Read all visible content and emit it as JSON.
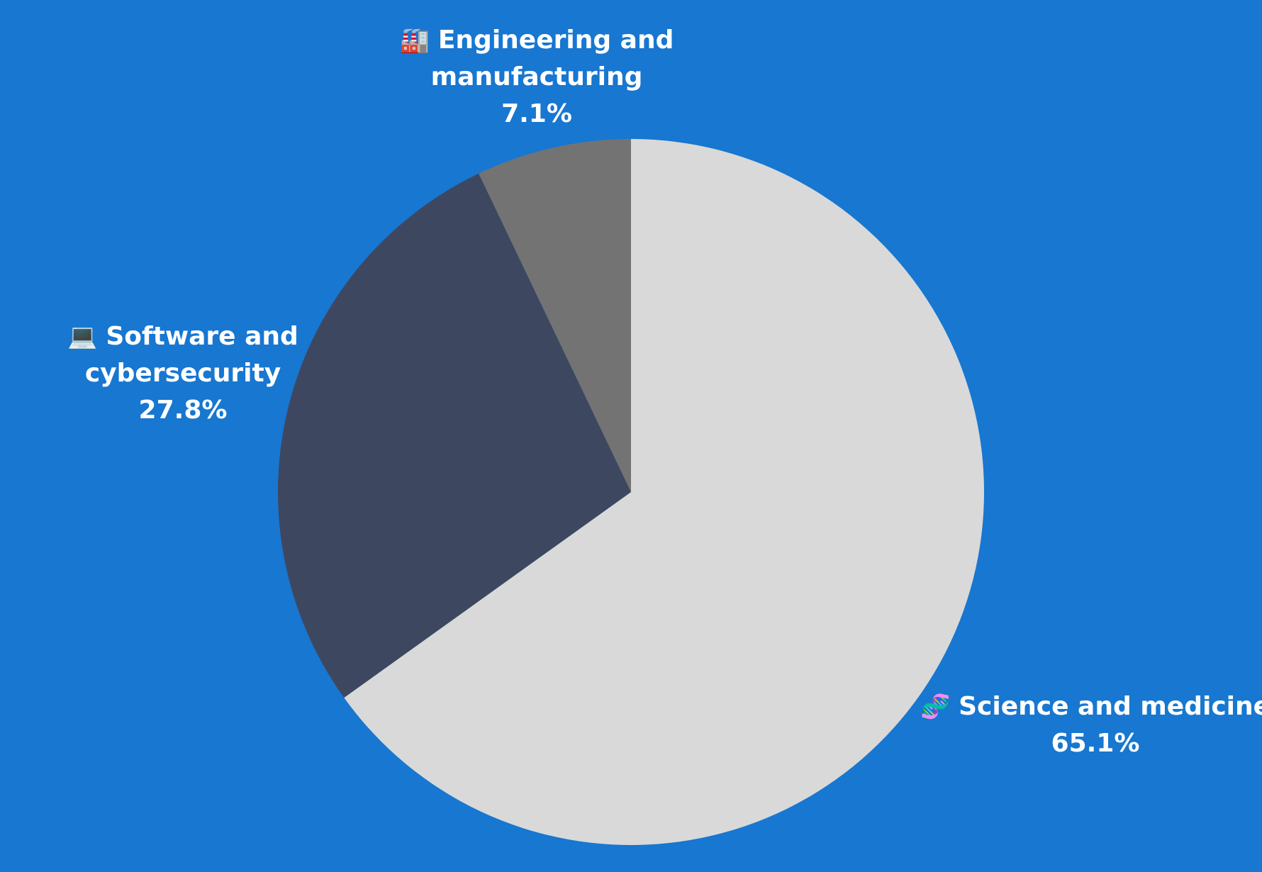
{
  "page": {
    "background": "#1777d1"
  },
  "chart_data": {
    "type": "pie",
    "start_angle_deg": 0,
    "direction": "clockwise",
    "legend": "none",
    "slices": [
      {
        "name": "Science and medicine",
        "value": 65.1,
        "label_lines": [
          "Science and medicine",
          "65.1%"
        ],
        "icon": "dna-icon",
        "color": "#d9d9d9"
      },
      {
        "name": "Software and cybersecurity",
        "value": 27.8,
        "label_lines": [
          "Software and",
          "cybersecurity",
          "27.8%"
        ],
        "icon": "laptop-icon",
        "color": "#3e4760"
      },
      {
        "name": "Engineering and manufacturing",
        "value": 7.1,
        "label_lines": [
          "Engineering and",
          "manufacturing",
          "7.1%"
        ],
        "icon": "factory-icon",
        "color": "#737373"
      }
    ]
  }
}
